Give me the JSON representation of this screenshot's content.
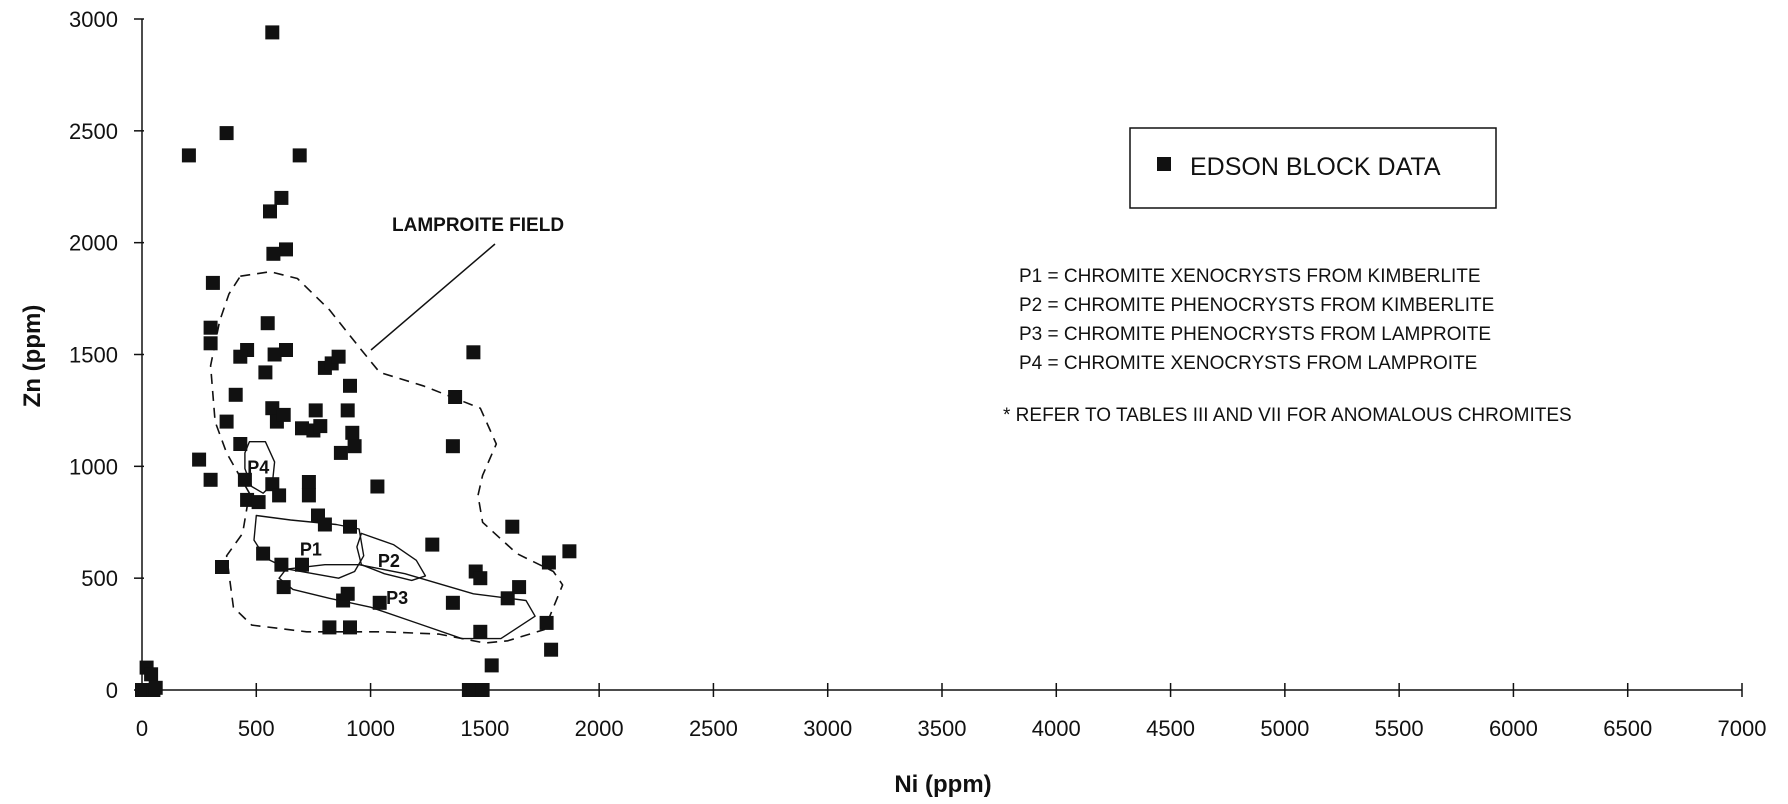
{
  "chart_data": {
    "type": "scatter",
    "xlabel": "Ni (ppm)",
    "ylabel": "Zn (ppm)",
    "xlim": [
      0,
      7000
    ],
    "ylim": [
      0,
      3000
    ],
    "xticks": [
      0,
      500,
      1000,
      1500,
      2000,
      2500,
      3000,
      3500,
      4000,
      4500,
      5000,
      5500,
      6000,
      6500,
      7000
    ],
    "yticks": [
      0,
      500,
      1000,
      1500,
      2000,
      2500,
      3000
    ],
    "grid": false,
    "legend": {
      "placement": "upper-right",
      "entries": [
        "EDSON BLOCK DATA"
      ]
    },
    "marker_color": "#111111",
    "series": [
      {
        "name": "EDSON BLOCK DATA",
        "marker": "square",
        "points": [
          [
            570,
            2940
          ],
          [
            205,
            2390
          ],
          [
            370,
            2490
          ],
          [
            690,
            2390
          ],
          [
            610,
            2200
          ],
          [
            560,
            2140
          ],
          [
            575,
            1950
          ],
          [
            630,
            1970
          ],
          [
            310,
            1820
          ],
          [
            300,
            1620
          ],
          [
            300,
            1550
          ],
          [
            550,
            1640
          ],
          [
            460,
            1520
          ],
          [
            430,
            1490
          ],
          [
            580,
            1500
          ],
          [
            630,
            1520
          ],
          [
            540,
            1420
          ],
          [
            410,
            1320
          ],
          [
            370,
            1200
          ],
          [
            570,
            1260
          ],
          [
            590,
            1200
          ],
          [
            620,
            1230
          ],
          [
            700,
            1170
          ],
          [
            760,
            1250
          ],
          [
            750,
            1160
          ],
          [
            780,
            1180
          ],
          [
            800,
            1440
          ],
          [
            830,
            1460
          ],
          [
            860,
            1490
          ],
          [
            910,
            1360
          ],
          [
            900,
            1250
          ],
          [
            920,
            1150
          ],
          [
            930,
            1090
          ],
          [
            870,
            1060
          ],
          [
            1370,
            1310
          ],
          [
            1360,
            1090
          ],
          [
            1450,
            1510
          ],
          [
            250,
            1030
          ],
          [
            300,
            940
          ],
          [
            430,
            1100
          ],
          [
            450,
            940
          ],
          [
            460,
            850
          ],
          [
            510,
            840
          ],
          [
            570,
            920
          ],
          [
            600,
            870
          ],
          [
            730,
            930
          ],
          [
            730,
            870
          ],
          [
            770,
            780
          ],
          [
            800,
            740
          ],
          [
            910,
            730
          ],
          [
            1030,
            910
          ],
          [
            350,
            550
          ],
          [
            530,
            610
          ],
          [
            610,
            560
          ],
          [
            700,
            560
          ],
          [
            620,
            460
          ],
          [
            820,
            280
          ],
          [
            880,
            400
          ],
          [
            900,
            430
          ],
          [
            910,
            280
          ],
          [
            1040,
            390
          ],
          [
            1270,
            650
          ],
          [
            1360,
            390
          ],
          [
            1460,
            530
          ],
          [
            1480,
            500
          ],
          [
            1600,
            410
          ],
          [
            1620,
            730
          ],
          [
            1650,
            460
          ],
          [
            1480,
            260
          ],
          [
            1530,
            110
          ],
          [
            1430,
            0
          ],
          [
            1450,
            0
          ],
          [
            1490,
            0
          ],
          [
            1780,
            570
          ],
          [
            1870,
            620
          ],
          [
            1770,
            300
          ],
          [
            1790,
            180
          ],
          [
            0,
            0
          ],
          [
            15,
            0
          ],
          [
            20,
            100
          ],
          [
            40,
            70
          ],
          [
            50,
            0
          ],
          [
            60,
            10
          ]
        ]
      }
    ],
    "regions": [
      {
        "label": "LAMPROITE FIELD",
        "style": "dashed",
        "polygon": [
          [
            430,
            1850
          ],
          [
            560,
            1870
          ],
          [
            680,
            1840
          ],
          [
            820,
            1700
          ],
          [
            960,
            1520
          ],
          [
            1040,
            1420
          ],
          [
            1230,
            1360
          ],
          [
            1480,
            1260
          ],
          [
            1550,
            1100
          ],
          [
            1490,
            960
          ],
          [
            1470,
            870
          ],
          [
            1490,
            750
          ],
          [
            1640,
            610
          ],
          [
            1800,
            530
          ],
          [
            1840,
            470
          ],
          [
            1760,
            270
          ],
          [
            1600,
            220
          ],
          [
            1500,
            210
          ],
          [
            1300,
            250
          ],
          [
            1060,
            260
          ],
          [
            720,
            260
          ],
          [
            480,
            290
          ],
          [
            400,
            370
          ],
          [
            370,
            600
          ],
          [
            440,
            700
          ],
          [
            470,
            880
          ],
          [
            370,
            1060
          ],
          [
            320,
            1200
          ],
          [
            300,
            1450
          ],
          [
            340,
            1650
          ],
          [
            380,
            1770
          ]
        ]
      },
      {
        "label": "P1",
        "style": "solid",
        "polygon": [
          [
            500,
            780
          ],
          [
            650,
            760
          ],
          [
            850,
            740
          ],
          [
            950,
            720
          ],
          [
            970,
            600
          ],
          [
            930,
            530
          ],
          [
            860,
            500
          ],
          [
            750,
            520
          ],
          [
            640,
            540
          ],
          [
            540,
            590
          ],
          [
            490,
            670
          ]
        ]
      },
      {
        "label": "P2",
        "style": "solid",
        "polygon": [
          [
            960,
            700
          ],
          [
            1100,
            650
          ],
          [
            1200,
            580
          ],
          [
            1240,
            510
          ],
          [
            1180,
            490
          ],
          [
            1060,
            520
          ],
          [
            960,
            560
          ],
          [
            940,
            640
          ]
        ]
      },
      {
        "label": "P3",
        "style": "solid",
        "polygon": [
          [
            630,
            540
          ],
          [
            800,
            560
          ],
          [
            950,
            560
          ],
          [
            1150,
            520
          ],
          [
            1450,
            430
          ],
          [
            1680,
            400
          ],
          [
            1720,
            330
          ],
          [
            1570,
            230
          ],
          [
            1400,
            230
          ],
          [
            1200,
            300
          ],
          [
            1000,
            370
          ],
          [
            820,
            410
          ],
          [
            660,
            450
          ],
          [
            600,
            500
          ]
        ]
      },
      {
        "label": "P4",
        "style": "solid",
        "polygon": [
          [
            470,
            1110
          ],
          [
            540,
            1110
          ],
          [
            580,
            1020
          ],
          [
            570,
            920
          ],
          [
            530,
            880
          ],
          [
            480,
            910
          ],
          [
            450,
            990
          ],
          [
            450,
            1060
          ]
        ]
      }
    ],
    "annotations": {
      "lamproite_field": "LAMPROITE FIELD",
      "notes": [
        "P1 = CHROMITE XENOCRYSTS FROM KIMBERLITE",
        "P2 = CHROMITE PHENOCRYSTS FROM KIMBERLITE",
        "P3 = CHROMITE PHENOCRYSTS FROM LAMPROITE",
        "P4 = CHROMITE XENOCRYSTS FROM LAMPROITE",
        "* REFER TO TABLES III AND VII FOR ANOMALOUS CHROMITES"
      ]
    }
  }
}
